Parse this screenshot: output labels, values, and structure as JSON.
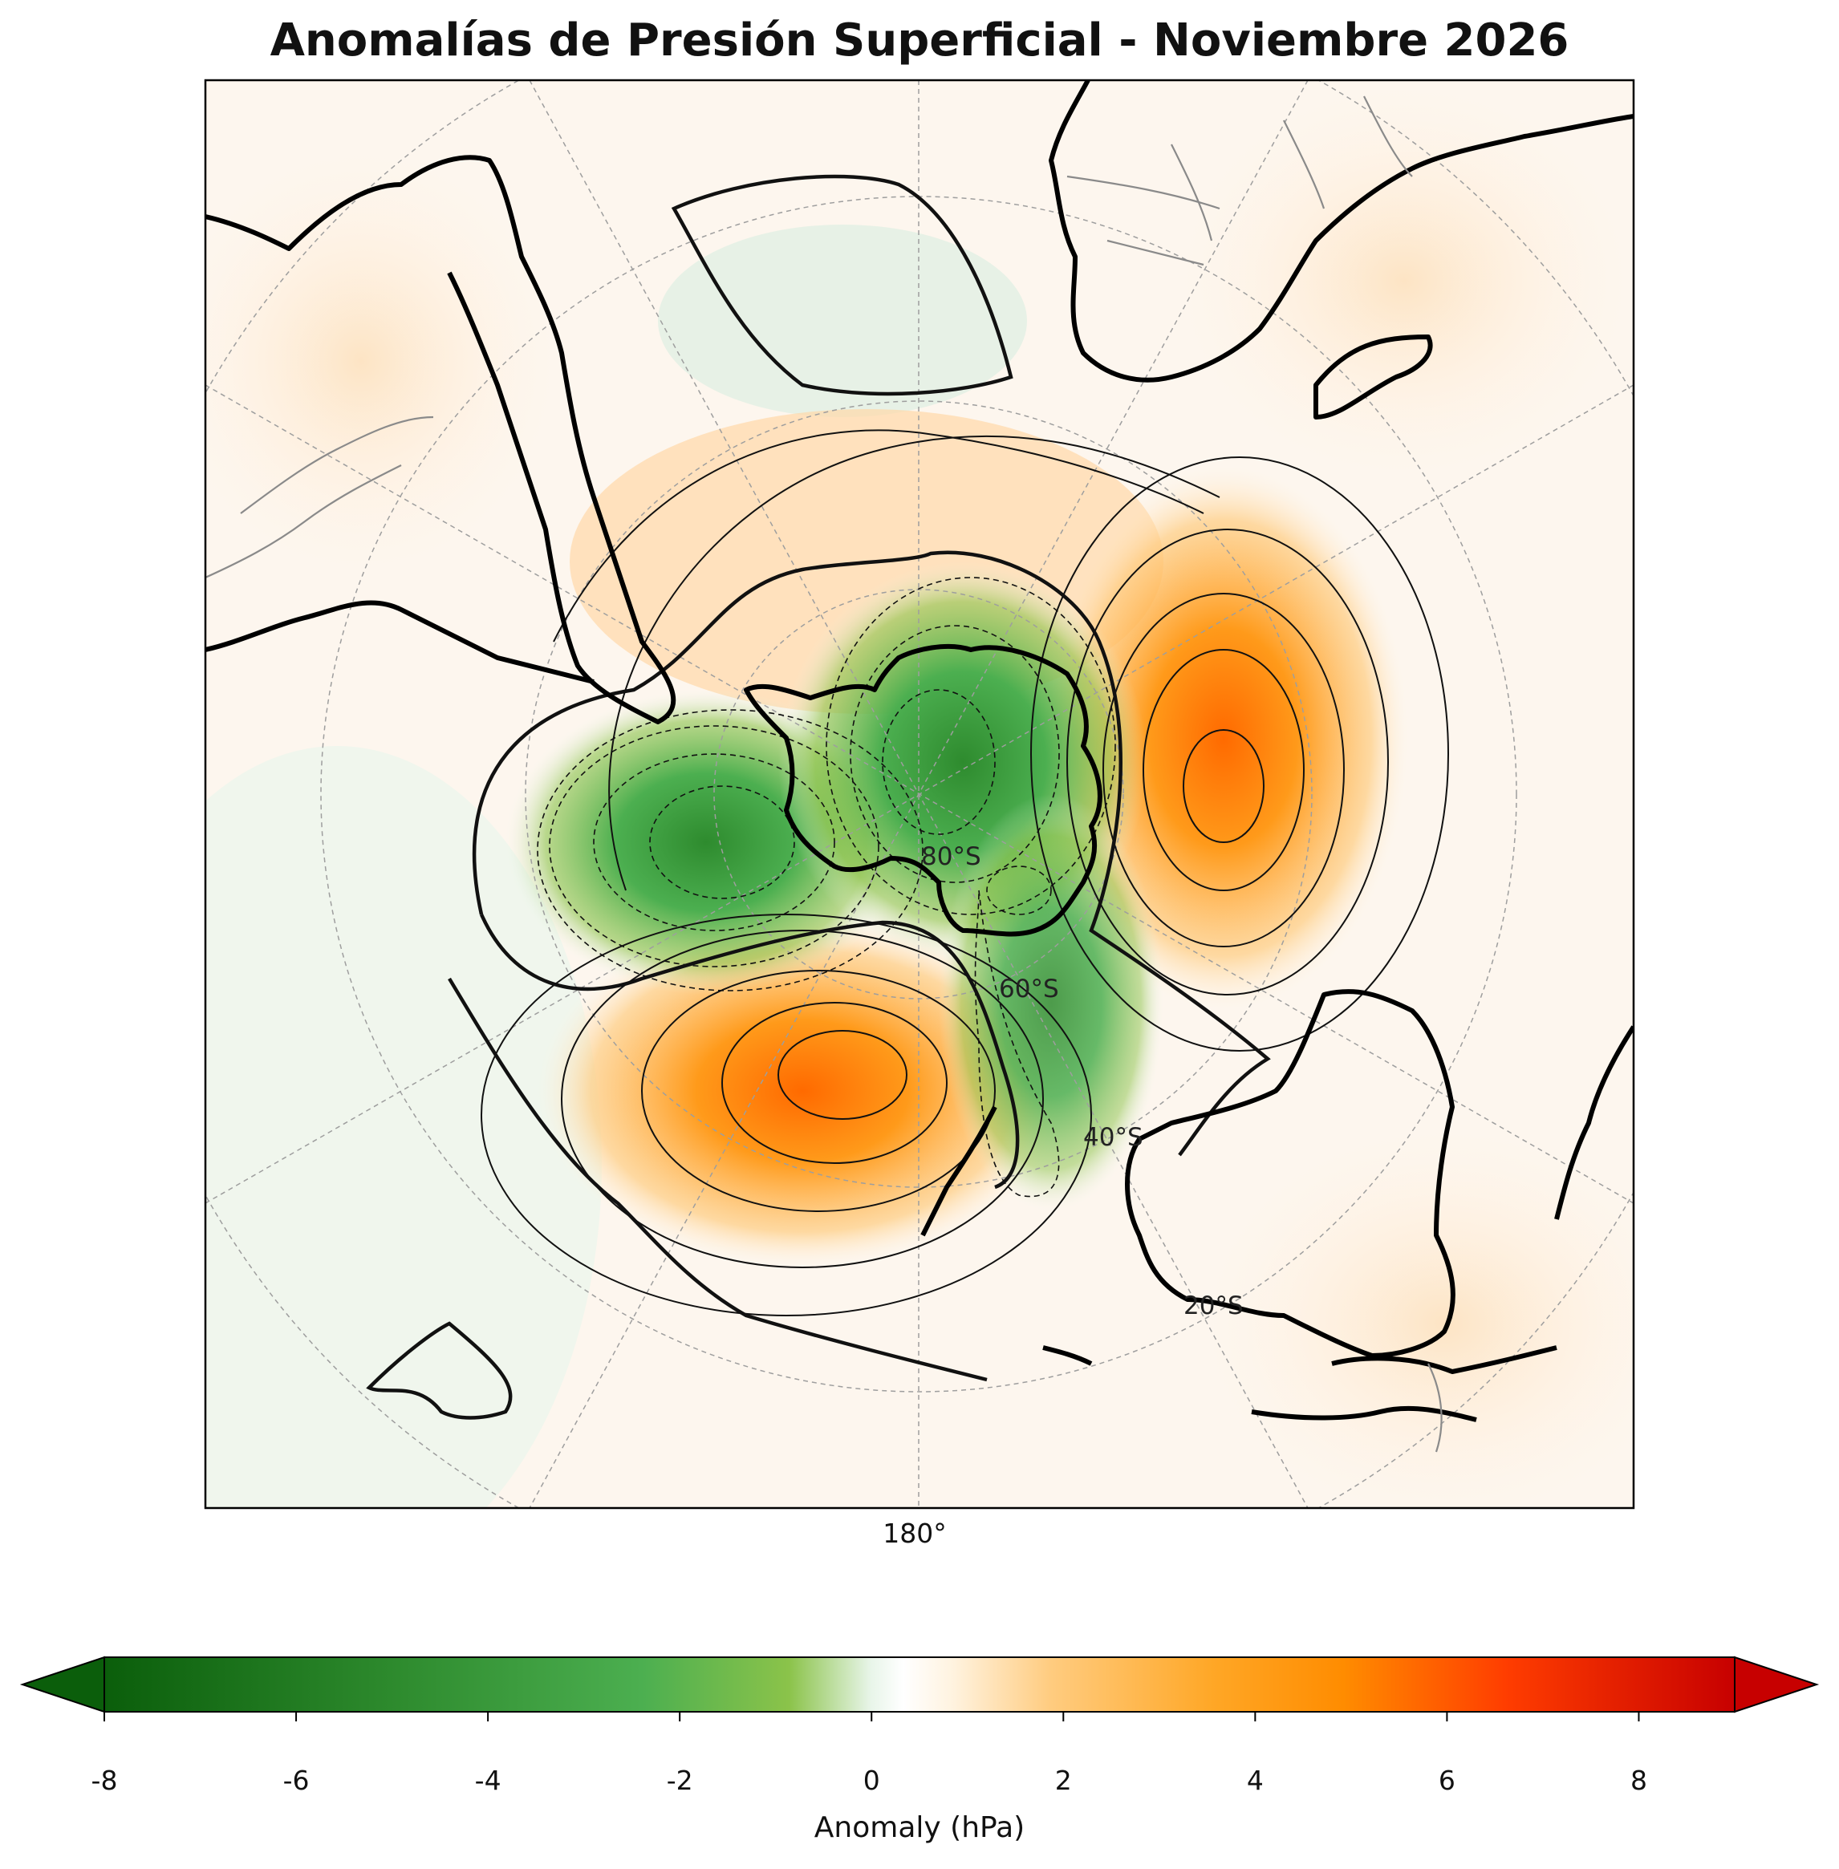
{
  "title": "Anomalías de Presión Superficial - Noviembre 2026",
  "map": {
    "projection": "south polar stereographic",
    "longitude_label": "180°",
    "latitude_labels": [
      "80°S",
      "60°S",
      "40°S",
      "20°S"
    ],
    "graticule": "dashed grey",
    "coastlines": "black",
    "country_borders": "grey",
    "contours": "solid lines positive, dashed lines negative, thick line zero"
  },
  "anomaly_centers": [
    {
      "name": "negative-center-west",
      "value": -6
    },
    {
      "name": "negative-center-pole",
      "value": -5
    },
    {
      "name": "negative-center-south",
      "value": -4
    },
    {
      "name": "positive-center-east",
      "value": 6
    },
    {
      "name": "positive-center-south",
      "value": 5
    }
  ],
  "colorbar": {
    "label": "Anomaly (hPa)",
    "ticks": [
      "-8",
      "-6",
      "-4",
      "-2",
      "0",
      "2",
      "4",
      "6",
      "8"
    ],
    "range": [
      -8,
      9
    ],
    "extend": "both",
    "colors": {
      "strong_negative": "#0b5e0b",
      "negative": "#4caf50",
      "weak_negative": "#8bc34a",
      "neutral": "#ffffff",
      "weak_positive": "#ffcc80",
      "positive": "#ff8c00",
      "strong_positive": "#c70000"
    }
  }
}
